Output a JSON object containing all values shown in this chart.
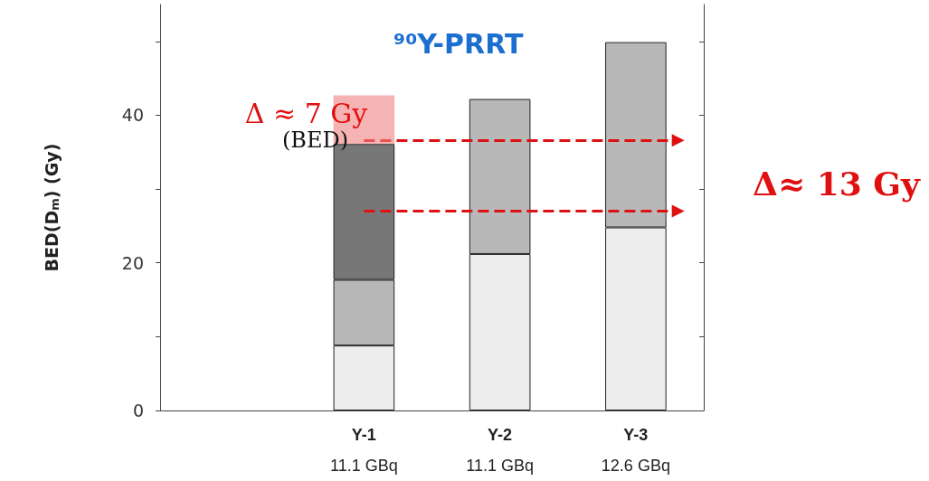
{
  "chart_data": {
    "type": "bar",
    "stacked": true,
    "title": "⁹⁰Y-PRRT",
    "ylabel": "BED(D$_{m}$) (Gy)",
    "categories": [
      null,
      "Y-1\n11.1 GBq",
      "Y-2\n11.1 GBq",
      "Y-3\n12.6 GBq"
    ],
    "series": [
      {
        "color": "#ededed",
        "values": [
          null,
          8.8,
          21.2,
          24.8
        ]
      },
      {
        "color": "#b8b8b8",
        "values": [
          null,
          8.9,
          21.0,
          25.1
        ]
      },
      {
        "color": "#777777",
        "values": [
          null,
          18.4,
          null,
          null
        ]
      }
    ],
    "ylim": [
      0,
      55
    ],
    "yticks": [
      0,
      {
        "value": 10,
        "label": null
      },
      20,
      {
        "value": 30,
        "label": null
      },
      40,
      {
        "value": 50,
        "label": null
      }
    ],
    "bands": [
      {
        "axis": "y",
        "from": 36.1,
        "to": 42.7,
        "color": "#f08080"
      }
    ],
    "ref_lines": [
      {
        "axis": "y",
        "value": 36.6,
        "color": "#dd1111",
        "line_style": "dashed"
      },
      {
        "axis": "y",
        "value": 27.0,
        "color": "#dd1111",
        "line_style": "dashed"
      }
    ],
    "annotations": [
      "Δ ≈ 7 Gy",
      "(BED)",
      "Δ≈ 13 Gy"
    ]
  }
}
